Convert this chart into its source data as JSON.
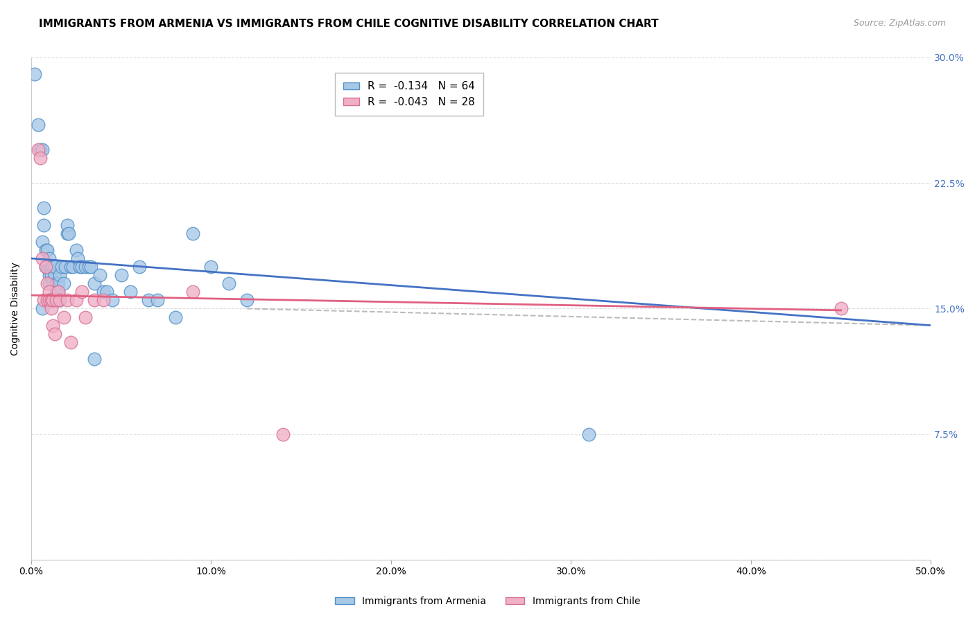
{
  "title": "IMMIGRANTS FROM ARMENIA VS IMMIGRANTS FROM CHILE COGNITIVE DISABILITY CORRELATION CHART",
  "source": "Source: ZipAtlas.com",
  "ylabel": "Cognitive Disability",
  "x_min": 0.0,
  "x_max": 0.5,
  "y_min": 0.0,
  "y_max": 0.3,
  "armenia_color": "#a8c8e8",
  "armenia_edge_color": "#5090c8",
  "chile_color": "#f0b0c8",
  "chile_edge_color": "#d87090",
  "armenia_line_color": "#4472c4",
  "chile_line_color": "#e06080",
  "dashed_line_color": "#bbbbbb",
  "legend_r_armenia": "-0.134",
  "legend_n_armenia": "64",
  "legend_r_chile": "-0.043",
  "legend_n_chile": "28",
  "armenia_x": [
    0.002,
    0.004,
    0.005,
    0.006,
    0.006,
    0.007,
    0.007,
    0.008,
    0.008,
    0.009,
    0.009,
    0.009,
    0.01,
    0.01,
    0.01,
    0.01,
    0.011,
    0.011,
    0.012,
    0.012,
    0.012,
    0.013,
    0.013,
    0.014,
    0.014,
    0.015,
    0.015,
    0.015,
    0.016,
    0.016,
    0.017,
    0.018,
    0.019,
    0.02,
    0.02,
    0.021,
    0.022,
    0.023,
    0.025,
    0.026,
    0.027,
    0.028,
    0.03,
    0.032,
    0.033,
    0.035,
    0.038,
    0.04,
    0.042,
    0.045,
    0.05,
    0.055,
    0.06,
    0.065,
    0.07,
    0.08,
    0.09,
    0.1,
    0.11,
    0.12,
    0.035,
    0.31,
    0.006,
    0.013
  ],
  "armenia_y": [
    0.29,
    0.26,
    0.245,
    0.245,
    0.19,
    0.2,
    0.21,
    0.185,
    0.175,
    0.175,
    0.175,
    0.185,
    0.18,
    0.175,
    0.165,
    0.17,
    0.175,
    0.17,
    0.175,
    0.165,
    0.155,
    0.17,
    0.175,
    0.165,
    0.16,
    0.165,
    0.16,
    0.155,
    0.155,
    0.17,
    0.175,
    0.165,
    0.175,
    0.195,
    0.2,
    0.195,
    0.175,
    0.175,
    0.185,
    0.18,
    0.175,
    0.175,
    0.175,
    0.175,
    0.175,
    0.165,
    0.17,
    0.16,
    0.16,
    0.155,
    0.17,
    0.16,
    0.175,
    0.155,
    0.155,
    0.145,
    0.195,
    0.175,
    0.165,
    0.155,
    0.12,
    0.075,
    0.15,
    0.155
  ],
  "chile_x": [
    0.004,
    0.005,
    0.006,
    0.007,
    0.008,
    0.009,
    0.009,
    0.01,
    0.01,
    0.011,
    0.011,
    0.012,
    0.012,
    0.013,
    0.014,
    0.015,
    0.016,
    0.018,
    0.02,
    0.022,
    0.025,
    0.028,
    0.03,
    0.035,
    0.04,
    0.09,
    0.14,
    0.45
  ],
  "chile_y": [
    0.245,
    0.24,
    0.18,
    0.155,
    0.175,
    0.165,
    0.155,
    0.16,
    0.155,
    0.15,
    0.155,
    0.155,
    0.14,
    0.135,
    0.155,
    0.16,
    0.155,
    0.145,
    0.155,
    0.13,
    0.155,
    0.16,
    0.145,
    0.155,
    0.155,
    0.16,
    0.075,
    0.15
  ],
  "background_color": "#ffffff",
  "grid_color": "#dddddd",
  "right_tick_color": "#4472c4",
  "title_fontsize": 11,
  "axis_label_fontsize": 10,
  "tick_fontsize": 10
}
